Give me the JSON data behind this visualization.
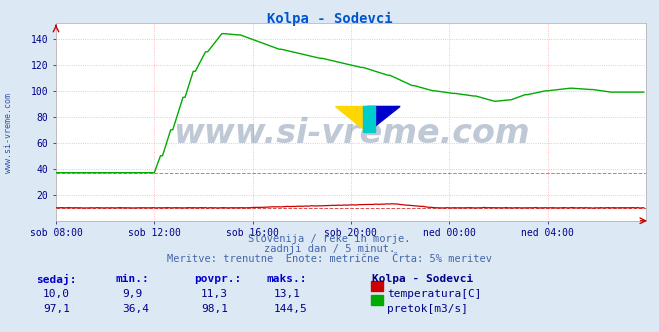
{
  "title": "Kolpa - Sodevci",
  "title_color": "#0055cc",
  "bg_color": "#dce9f5",
  "plot_bg_color": "#ffffff",
  "grid_color": "#ffaaaa",
  "grid_style": ":",
  "tick_color": "#000088",
  "xtick_labels": [
    "sob 08:00",
    "sob 12:00",
    "sob 16:00",
    "sob 20:00",
    "ned 00:00",
    "ned 04:00"
  ],
  "xtick_positions": [
    0,
    48,
    96,
    144,
    192,
    240
  ],
  "ytick_positions": [
    20,
    40,
    60,
    80,
    100,
    120,
    140
  ],
  "ylim": [
    0,
    152
  ],
  "xlim": [
    0,
    288
  ],
  "watermark": "www.si-vreme.com",
  "watermark_color": "#1a3a6a",
  "watermark_alpha": 0.28,
  "subtitle1": "Slovenija / reke in morje.",
  "subtitle2": "zadnji dan / 5 minut.",
  "subtitle3": "Meritve: trenutne  Enote: metrične  Črta: 5% meritev",
  "subtitle_color": "#4466aa",
  "legend_title": "Kolpa - Sodevci",
  "legend_title_color": "#000088",
  "legend_color": "#000088",
  "stats_label_color": "#0000cc",
  "stats_value_color": "#000088",
  "temp_color": "#cc0000",
  "flow_color": "#00aa00",
  "left_label": "www.si-vreme.com",
  "left_label_color": "#3355aa",
  "stats_labels": [
    "sedaj:",
    "min.:",
    "povpr.:",
    "maks.:"
  ],
  "stats_temp": [
    "10,0",
    "9,9",
    "11,3",
    "13,1"
  ],
  "stats_flow": [
    "97,1",
    "36,4",
    "98,1",
    "144,5"
  ],
  "temp_5pct": 9.9,
  "flow_5pct": 36.4
}
